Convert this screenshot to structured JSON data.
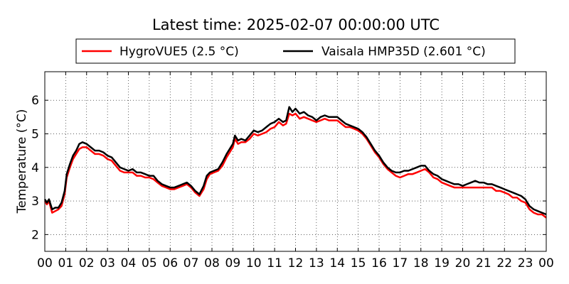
{
  "chart_data": {
    "type": "line",
    "title": "Latest time: 2025-02-07 00:00:00 UTC",
    "xlabel": "",
    "ylabel": "Temperature (°C)",
    "x_unit": "hour",
    "xlim": [
      0,
      24
    ],
    "ylim": [
      1.5,
      6.85
    ],
    "x_ticks": [
      0,
      1,
      2,
      3,
      4,
      5,
      6,
      7,
      8,
      9,
      10,
      11,
      12,
      13,
      14,
      15,
      16,
      17,
      18,
      19,
      20,
      21,
      22,
      23,
      24
    ],
    "x_tick_labels": [
      "00",
      "01",
      "02",
      "03",
      "04",
      "05",
      "06",
      "07",
      "08",
      "09",
      "10",
      "11",
      "12",
      "13",
      "14",
      "15",
      "16",
      "17",
      "18",
      "19",
      "20",
      "21",
      "22",
      "23",
      "00"
    ],
    "y_ticks": [
      2,
      3,
      4,
      5,
      6
    ],
    "y_tick_labels": [
      "2",
      "3",
      "4",
      "5",
      "6"
    ],
    "grid": true,
    "legend_position": "top-center",
    "series": [
      {
        "name": "HygroVUE5 (2.5 °C)",
        "color": "#ff0000",
        "points": [
          [
            0,
            3.0
          ],
          [
            0.1,
            2.9
          ],
          [
            0.2,
            3.0
          ],
          [
            0.35,
            2.65
          ],
          [
            0.5,
            2.7
          ],
          [
            0.65,
            2.75
          ],
          [
            0.8,
            2.85
          ],
          [
            0.95,
            3.2
          ],
          [
            1.05,
            3.7
          ],
          [
            1.2,
            4.0
          ],
          [
            1.35,
            4.25
          ],
          [
            1.5,
            4.4
          ],
          [
            1.65,
            4.55
          ],
          [
            1.8,
            4.6
          ],
          [
            2.0,
            4.6
          ],
          [
            2.2,
            4.5
          ],
          [
            2.4,
            4.4
          ],
          [
            2.6,
            4.4
          ],
          [
            2.8,
            4.35
          ],
          [
            3.0,
            4.25
          ],
          [
            3.2,
            4.2
          ],
          [
            3.4,
            4.05
          ],
          [
            3.6,
            3.9
          ],
          [
            3.8,
            3.85
          ],
          [
            4.0,
            3.85
          ],
          [
            4.2,
            3.85
          ],
          [
            4.4,
            3.75
          ],
          [
            4.6,
            3.75
          ],
          [
            4.8,
            3.7
          ],
          [
            5.0,
            3.7
          ],
          [
            5.2,
            3.65
          ],
          [
            5.4,
            3.55
          ],
          [
            5.6,
            3.45
          ],
          [
            5.8,
            3.4
          ],
          [
            6.0,
            3.35
          ],
          [
            6.2,
            3.35
          ],
          [
            6.4,
            3.4
          ],
          [
            6.6,
            3.45
          ],
          [
            6.8,
            3.5
          ],
          [
            7.0,
            3.4
          ],
          [
            7.2,
            3.25
          ],
          [
            7.4,
            3.15
          ],
          [
            7.6,
            3.35
          ],
          [
            7.75,
            3.65
          ],
          [
            7.9,
            3.8
          ],
          [
            8.1,
            3.85
          ],
          [
            8.3,
            3.9
          ],
          [
            8.5,
            4.05
          ],
          [
            8.7,
            4.3
          ],
          [
            8.85,
            4.45
          ],
          [
            9.0,
            4.6
          ],
          [
            9.1,
            4.85
          ],
          [
            9.25,
            4.7
          ],
          [
            9.4,
            4.75
          ],
          [
            9.6,
            4.75
          ],
          [
            9.8,
            4.85
          ],
          [
            10.0,
            5.0
          ],
          [
            10.2,
            4.95
          ],
          [
            10.4,
            5.0
          ],
          [
            10.6,
            5.05
          ],
          [
            10.8,
            5.15
          ],
          [
            11.0,
            5.2
          ],
          [
            11.2,
            5.35
          ],
          [
            11.4,
            5.25
          ],
          [
            11.55,
            5.3
          ],
          [
            11.7,
            5.6
          ],
          [
            11.85,
            5.55
          ],
          [
            12.0,
            5.6
          ],
          [
            12.2,
            5.45
          ],
          [
            12.4,
            5.5
          ],
          [
            12.6,
            5.45
          ],
          [
            12.8,
            5.4
          ],
          [
            13.0,
            5.35
          ],
          [
            13.2,
            5.4
          ],
          [
            13.4,
            5.45
          ],
          [
            13.6,
            5.4
          ],
          [
            13.8,
            5.4
          ],
          [
            14.0,
            5.4
          ],
          [
            14.2,
            5.3
          ],
          [
            14.4,
            5.2
          ],
          [
            14.6,
            5.2
          ],
          [
            14.8,
            5.15
          ],
          [
            15.0,
            5.1
          ],
          [
            15.2,
            5.0
          ],
          [
            15.4,
            4.85
          ],
          [
            15.6,
            4.65
          ],
          [
            15.8,
            4.45
          ],
          [
            16.0,
            4.3
          ],
          [
            16.2,
            4.1
          ],
          [
            16.4,
            3.95
          ],
          [
            16.6,
            3.85
          ],
          [
            16.8,
            3.75
          ],
          [
            17.0,
            3.7
          ],
          [
            17.2,
            3.75
          ],
          [
            17.4,
            3.8
          ],
          [
            17.6,
            3.8
          ],
          [
            17.8,
            3.85
          ],
          [
            18.0,
            3.9
          ],
          [
            18.2,
            3.95
          ],
          [
            18.4,
            3.85
          ],
          [
            18.6,
            3.7
          ],
          [
            18.8,
            3.65
          ],
          [
            19.0,
            3.55
          ],
          [
            19.2,
            3.5
          ],
          [
            19.4,
            3.45
          ],
          [
            19.6,
            3.4
          ],
          [
            19.8,
            3.4
          ],
          [
            20.0,
            3.4
          ],
          [
            20.2,
            3.4
          ],
          [
            20.4,
            3.4
          ],
          [
            20.6,
            3.4
          ],
          [
            20.8,
            3.4
          ],
          [
            21.0,
            3.4
          ],
          [
            21.2,
            3.4
          ],
          [
            21.4,
            3.4
          ],
          [
            21.6,
            3.3
          ],
          [
            21.8,
            3.3
          ],
          [
            22.0,
            3.25
          ],
          [
            22.2,
            3.2
          ],
          [
            22.4,
            3.1
          ],
          [
            22.6,
            3.1
          ],
          [
            22.8,
            3.0
          ],
          [
            23.0,
            2.95
          ],
          [
            23.2,
            2.75
          ],
          [
            23.4,
            2.65
          ],
          [
            23.6,
            2.6
          ],
          [
            23.8,
            2.6
          ],
          [
            24.0,
            2.5
          ]
        ]
      },
      {
        "name": "Vaisala HMP35D (2.601 °C)",
        "color": "#000000",
        "points": [
          [
            0,
            3.05
          ],
          [
            0.1,
            2.95
          ],
          [
            0.2,
            3.05
          ],
          [
            0.35,
            2.75
          ],
          [
            0.5,
            2.8
          ],
          [
            0.65,
            2.8
          ],
          [
            0.8,
            2.95
          ],
          [
            0.95,
            3.3
          ],
          [
            1.05,
            3.8
          ],
          [
            1.2,
            4.1
          ],
          [
            1.35,
            4.35
          ],
          [
            1.5,
            4.5
          ],
          [
            1.65,
            4.7
          ],
          [
            1.8,
            4.75
          ],
          [
            2.0,
            4.7
          ],
          [
            2.2,
            4.6
          ],
          [
            2.4,
            4.5
          ],
          [
            2.6,
            4.5
          ],
          [
            2.8,
            4.45
          ],
          [
            3.0,
            4.35
          ],
          [
            3.2,
            4.3
          ],
          [
            3.4,
            4.15
          ],
          [
            3.6,
            4.0
          ],
          [
            3.8,
            3.95
          ],
          [
            4.0,
            3.9
          ],
          [
            4.2,
            3.95
          ],
          [
            4.4,
            3.85
          ],
          [
            4.6,
            3.85
          ],
          [
            4.8,
            3.8
          ],
          [
            5.0,
            3.75
          ],
          [
            5.2,
            3.75
          ],
          [
            5.4,
            3.6
          ],
          [
            5.6,
            3.5
          ],
          [
            5.8,
            3.45
          ],
          [
            6.0,
            3.4
          ],
          [
            6.2,
            3.4
          ],
          [
            6.4,
            3.45
          ],
          [
            6.6,
            3.5
          ],
          [
            6.8,
            3.55
          ],
          [
            7.0,
            3.45
          ],
          [
            7.2,
            3.3
          ],
          [
            7.4,
            3.2
          ],
          [
            7.6,
            3.45
          ],
          [
            7.75,
            3.75
          ],
          [
            7.9,
            3.85
          ],
          [
            8.1,
            3.9
          ],
          [
            8.3,
            3.95
          ],
          [
            8.5,
            4.15
          ],
          [
            8.7,
            4.4
          ],
          [
            8.85,
            4.55
          ],
          [
            9.0,
            4.7
          ],
          [
            9.1,
            4.95
          ],
          [
            9.25,
            4.8
          ],
          [
            9.4,
            4.85
          ],
          [
            9.6,
            4.8
          ],
          [
            9.8,
            4.95
          ],
          [
            10.0,
            5.1
          ],
          [
            10.2,
            5.05
          ],
          [
            10.4,
            5.1
          ],
          [
            10.6,
            5.2
          ],
          [
            10.8,
            5.3
          ],
          [
            11.0,
            5.35
          ],
          [
            11.2,
            5.45
          ],
          [
            11.4,
            5.35
          ],
          [
            11.55,
            5.4
          ],
          [
            11.7,
            5.8
          ],
          [
            11.85,
            5.65
          ],
          [
            12.0,
            5.75
          ],
          [
            12.2,
            5.6
          ],
          [
            12.4,
            5.65
          ],
          [
            12.6,
            5.55
          ],
          [
            12.8,
            5.5
          ],
          [
            13.0,
            5.4
          ],
          [
            13.2,
            5.5
          ],
          [
            13.4,
            5.55
          ],
          [
            13.6,
            5.5
          ],
          [
            13.8,
            5.5
          ],
          [
            14.0,
            5.5
          ],
          [
            14.2,
            5.4
          ],
          [
            14.4,
            5.3
          ],
          [
            14.6,
            5.25
          ],
          [
            14.8,
            5.2
          ],
          [
            15.0,
            5.15
          ],
          [
            15.2,
            5.05
          ],
          [
            15.4,
            4.9
          ],
          [
            15.6,
            4.7
          ],
          [
            15.8,
            4.5
          ],
          [
            16.0,
            4.35
          ],
          [
            16.2,
            4.15
          ],
          [
            16.4,
            4.0
          ],
          [
            16.6,
            3.9
          ],
          [
            16.8,
            3.85
          ],
          [
            17.0,
            3.85
          ],
          [
            17.2,
            3.9
          ],
          [
            17.4,
            3.9
          ],
          [
            17.6,
            3.95
          ],
          [
            17.8,
            4.0
          ],
          [
            18.0,
            4.05
          ],
          [
            18.2,
            4.05
          ],
          [
            18.4,
            3.9
          ],
          [
            18.6,
            3.8
          ],
          [
            18.8,
            3.75
          ],
          [
            19.0,
            3.65
          ],
          [
            19.2,
            3.6
          ],
          [
            19.4,
            3.55
          ],
          [
            19.6,
            3.5
          ],
          [
            19.8,
            3.5
          ],
          [
            20.0,
            3.45
          ],
          [
            20.2,
            3.5
          ],
          [
            20.4,
            3.55
          ],
          [
            20.6,
            3.6
          ],
          [
            20.8,
            3.55
          ],
          [
            21.0,
            3.55
          ],
          [
            21.2,
            3.5
          ],
          [
            21.4,
            3.5
          ],
          [
            21.6,
            3.45
          ],
          [
            21.8,
            3.4
          ],
          [
            22.0,
            3.35
          ],
          [
            22.2,
            3.3
          ],
          [
            22.4,
            3.25
          ],
          [
            22.6,
            3.2
          ],
          [
            22.8,
            3.15
          ],
          [
            23.0,
            3.05
          ],
          [
            23.2,
            2.85
          ],
          [
            23.4,
            2.75
          ],
          [
            23.6,
            2.7
          ],
          [
            23.8,
            2.65
          ],
          [
            24.0,
            2.6
          ]
        ]
      }
    ]
  }
}
